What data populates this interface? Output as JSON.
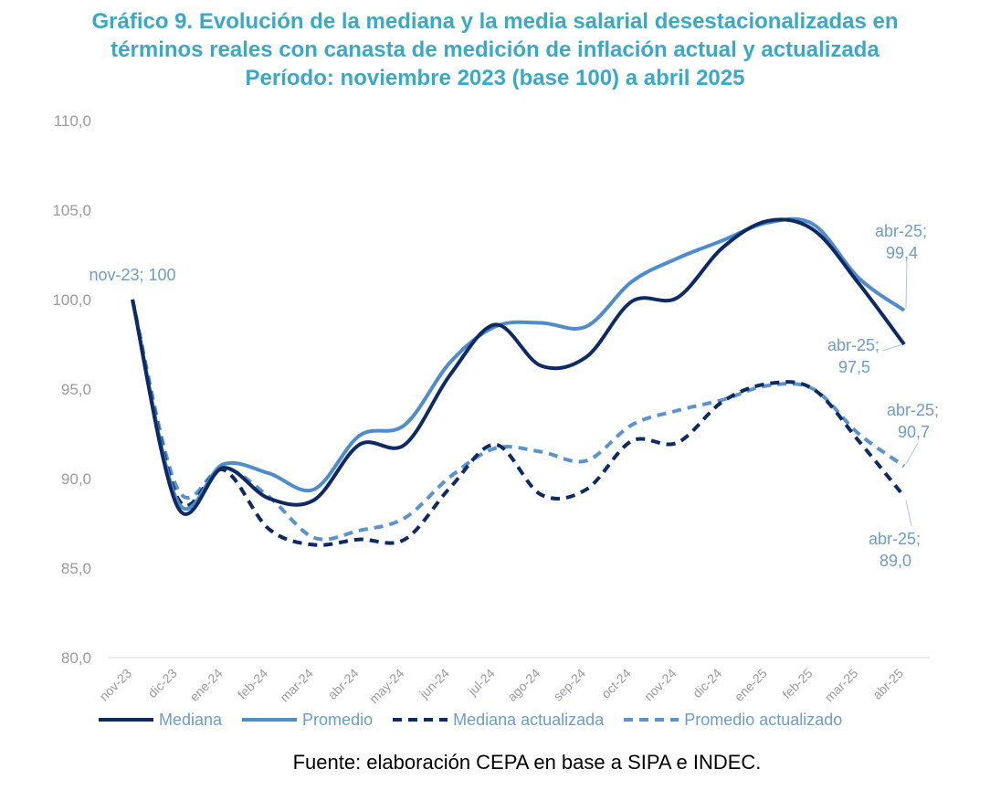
{
  "header": {
    "title_line1": "Gráfico 9. Evolución de la mediana y la media salarial desestacionalizadas en",
    "title_line2": "términos reales con canasta de medición de inflación actual y actualizada",
    "title_line3": "Período: noviembre 2023 (base 100) a abril 2025"
  },
  "footer": {
    "source": "Fuente: elaboración CEPA en base a SIPA e INDEC."
  },
  "colors": {
    "mediana": "#0d2a63",
    "promedio": "#4f8ccc",
    "mediana_actualizada": "#0d2a63",
    "promedio_actualizado": "#5b93cf",
    "title": "#3aa9c6",
    "axis_text": "#9a9a9a"
  },
  "chart_data": {
    "type": "line",
    "title": "Gráfico 9. Evolución de la mediana y la media salarial desestacionalizadas en términos reales con canasta de medición de inflación actual y actualizada Período: noviembre 2023 (base 100) a abril 2025",
    "xlabel": "",
    "ylabel": "",
    "ylim": [
      80,
      110
    ],
    "yticks": [
      "80,0",
      "85,0",
      "90,0",
      "95,0",
      "100,0",
      "105,0",
      "110,0"
    ],
    "ytick_values": [
      80,
      85,
      90,
      95,
      100,
      105,
      110
    ],
    "grid": false,
    "legend_position": "bottom",
    "categories": [
      "nov-23",
      "dic-23",
      "ene-24",
      "feb-24",
      "mar-24",
      "abr-24",
      "may-24",
      "jun-24",
      "jul-24",
      "ago-24",
      "sep-24",
      "oct-24",
      "nov-24",
      "dic-24",
      "ene-25",
      "feb-25",
      "mar-25",
      "abr-25"
    ],
    "series": [
      {
        "name": "Mediana",
        "style": "solid",
        "values": [
          100.0,
          88.4,
          90.6,
          88.9,
          88.8,
          91.9,
          91.9,
          95.8,
          98.6,
          96.3,
          96.8,
          99.9,
          100.1,
          102.9,
          104.4,
          103.9,
          100.9,
          97.5
        ]
      },
      {
        "name": "Promedio",
        "style": "solid",
        "values": [
          100.0,
          88.7,
          90.8,
          90.3,
          89.4,
          92.4,
          93.0,
          96.5,
          98.5,
          98.7,
          98.5,
          101.0,
          102.3,
          103.3,
          104.3,
          104.2,
          101.2,
          99.4
        ]
      },
      {
        "name": "Mediana actualizada",
        "style": "dashed",
        "values": [
          100.0,
          88.9,
          90.5,
          87.2,
          86.3,
          86.6,
          86.6,
          89.5,
          91.9,
          89.1,
          89.4,
          92.1,
          92.0,
          94.3,
          95.3,
          95.0,
          92.1,
          89.0
        ]
      },
      {
        "name": "Promedio actualizado",
        "style": "dashed",
        "values": [
          100.0,
          89.4,
          90.6,
          89.0,
          86.7,
          87.1,
          87.8,
          90.1,
          91.7,
          91.5,
          91.0,
          93.0,
          93.8,
          94.4,
          95.2,
          95.0,
          92.5,
          90.7
        ]
      }
    ],
    "annotations": [
      {
        "text1": "nov-23; 100",
        "text2": ""
      },
      {
        "text1": "abr-25;",
        "text2": "99,4"
      },
      {
        "text1": "abr-25;",
        "text2": "97,5"
      },
      {
        "text1": "abr-25;",
        "text2": "90,7"
      },
      {
        "text1": "abr-25;",
        "text2": "89,0"
      }
    ]
  }
}
